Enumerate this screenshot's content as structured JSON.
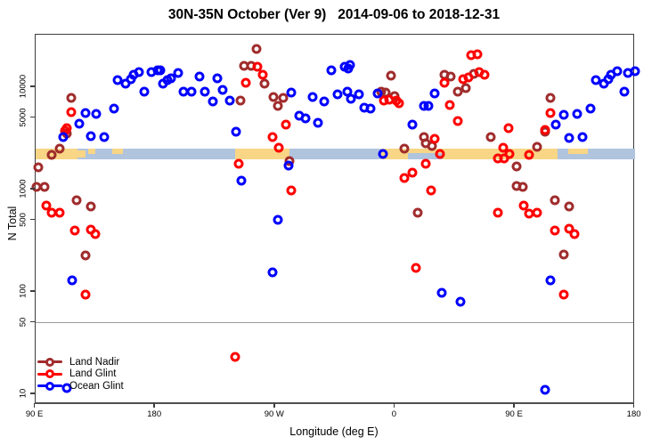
{
  "title": "30N-35N October (Ver 9)   2014-09-06 to 2018-12-31",
  "chart_data": {
    "type": "scatter",
    "title": "30N-35N October (Ver 9)   2014-09-06 to 2018-12-31",
    "xlabel": "Longitude (deg E)",
    "ylabel": "N Total",
    "x_axis": {
      "note": "longitude axis unwrapped eastward from 90E; values in deg E 90..540",
      "range": [
        90,
        540
      ],
      "tick_values": [
        90,
        180,
        270,
        360,
        450,
        540
      ],
      "tick_labels": [
        "90 E",
        "180",
        "90 W",
        "0",
        "90 E",
        "180"
      ]
    },
    "y_axis": {
      "scale": "log10",
      "range": [
        10,
        25000
      ],
      "tick_values": [
        10,
        50,
        100,
        500,
        1000,
        5000,
        10000
      ],
      "tick_labels": [
        "10",
        "50",
        "100",
        "500",
        "1000",
        "5000",
        "10000"
      ]
    },
    "reference_line_y": 50,
    "grid": false,
    "legend_position": "bottom-left",
    "map_band": {
      "description": "30N-35N latitude strip map drawn across plot near N=2300",
      "ocean_color": "#B0C4DE",
      "land_color": "#F8D685",
      "lon_range": [
        90,
        540
      ],
      "land_segments": [
        {
          "from": 90,
          "to": 122,
          "part": "full"
        },
        {
          "from": 122,
          "to": 128,
          "part": "mid"
        },
        {
          "from": 130,
          "to": 135,
          "part": "top"
        },
        {
          "from": 148,
          "to": 156,
          "part": "top"
        },
        {
          "from": 240,
          "to": 281,
          "part": "full"
        },
        {
          "from": 350,
          "to": 482,
          "part": "full"
        },
        {
          "from": 490,
          "to": 505,
          "part": "top"
        }
      ],
      "ocean_cutouts": [
        {
          "from": 370,
          "to": 396,
          "part": "bottom"
        }
      ]
    },
    "series": [
      {
        "name": "Land Nadir",
        "color": "#A02C2C",
        "points": [
          [
            117,
            7900
          ],
          [
            114,
            3550
          ],
          [
            108,
            2500
          ],
          [
            102,
            2180
          ],
          [
            92,
            1640
          ],
          [
            91,
            1070
          ],
          [
            97,
            1070
          ],
          [
            121,
            790
          ],
          [
            132,
            690
          ],
          [
            128,
            225
          ],
          [
            244,
            7400
          ],
          [
            256,
            23600
          ],
          [
            247,
            16200
          ],
          [
            252,
            16200
          ],
          [
            262,
            10850
          ],
          [
            269,
            8030
          ],
          [
            276,
            7870
          ],
          [
            272,
            6570
          ],
          [
            281,
            1890
          ],
          [
            350,
            9050
          ],
          [
            353,
            8870
          ],
          [
            360,
            8200
          ],
          [
            357,
            12950
          ],
          [
            367,
            2500
          ],
          [
            383,
            2830
          ],
          [
            388,
            2660
          ],
          [
            382,
            3270
          ],
          [
            377,
            590
          ],
          [
            397,
            13200
          ],
          [
            402,
            12700
          ],
          [
            419,
            13400
          ],
          [
            413,
            9800
          ],
          [
            407,
            9050
          ],
          [
            432,
            3270
          ],
          [
            467,
            2610
          ],
          [
            451,
            1670
          ],
          [
            451,
            1090
          ],
          [
            456,
            1070
          ],
          [
            480,
            790
          ],
          [
            491,
            690
          ],
          [
            487,
            230
          ],
          [
            477,
            7870
          ],
          [
            473,
            3700
          ]
        ]
      },
      {
        "name": "Land Glint",
        "color": "#FF0000",
        "points": [
          [
            117,
            5710
          ],
          [
            114,
            4000
          ],
          [
            112,
            3770
          ],
          [
            98,
            700
          ],
          [
            102,
            590
          ],
          [
            108,
            600
          ],
          [
            120,
            400
          ],
          [
            132,
            408
          ],
          [
            135,
            370
          ],
          [
            128,
            94
          ],
          [
            257,
            16000
          ],
          [
            261,
            13200
          ],
          [
            248,
            11050
          ],
          [
            268,
            3270
          ],
          [
            278,
            4330
          ],
          [
            273,
            2560
          ],
          [
            282,
            990
          ],
          [
            240,
            23
          ],
          [
            243,
            1780
          ],
          [
            352,
            7400
          ],
          [
            356,
            7560
          ],
          [
            361,
            7400
          ],
          [
            363,
            6970
          ],
          [
            373,
            1450
          ],
          [
            367,
            1290
          ],
          [
            383,
            1780
          ],
          [
            394,
            2220
          ],
          [
            387,
            990
          ],
          [
            376,
            170
          ],
          [
            397,
            11050
          ],
          [
            411,
            11950
          ],
          [
            415,
            12400
          ],
          [
            423,
            14050
          ],
          [
            427,
            13200
          ],
          [
            417,
            20500
          ],
          [
            422,
            21000
          ],
          [
            401,
            6700
          ],
          [
            407,
            4690
          ],
          [
            390,
            3140
          ],
          [
            445,
            4000
          ],
          [
            437,
            2000
          ],
          [
            441,
            2560
          ],
          [
            446,
            2220
          ],
          [
            442,
            2000
          ],
          [
            461,
            2180
          ],
          [
            437,
            600
          ],
          [
            457,
            700
          ],
          [
            461,
            578
          ],
          [
            467,
            590
          ],
          [
            480,
            400
          ],
          [
            491,
            415
          ],
          [
            495,
            370
          ],
          [
            477,
            5600
          ],
          [
            473,
            3840
          ],
          [
            487,
            94
          ]
        ]
      },
      {
        "name": "Ocean Glint",
        "color": "#0000FF",
        "points": [
          [
            152,
            11700
          ],
          [
            158,
            10850
          ],
          [
            162,
            11950
          ],
          [
            164,
            13200
          ],
          [
            168,
            14050
          ],
          [
            172,
            9050
          ],
          [
            177,
            14050
          ],
          [
            182,
            14600
          ],
          [
            184,
            14600
          ],
          [
            186,
            10850
          ],
          [
            189,
            11700
          ],
          [
            192,
            12200
          ],
          [
            197,
            13800
          ],
          [
            201,
            9050
          ],
          [
            123,
            4420
          ],
          [
            128,
            5600
          ],
          [
            136,
            5490
          ],
          [
            149,
            6180
          ],
          [
            118,
            130
          ],
          [
            111,
            3270
          ],
          [
            132,
            3340
          ],
          [
            142,
            3270
          ],
          [
            213,
            12700
          ],
          [
            227,
            12200
          ],
          [
            207,
            9050
          ],
          [
            217,
            9050
          ],
          [
            231,
            9400
          ],
          [
            223,
            7260
          ],
          [
            236,
            7400
          ],
          [
            241,
            3690
          ],
          [
            282,
            8870
          ],
          [
            298,
            8030
          ],
          [
            307,
            7260
          ],
          [
            317,
            8530
          ],
          [
            324,
            9050
          ],
          [
            312,
            14600
          ],
          [
            322,
            15850
          ],
          [
            326,
            16600
          ],
          [
            288,
            5270
          ],
          [
            293,
            4970
          ],
          [
            302,
            4510
          ],
          [
            268,
            155
          ],
          [
            280,
            1710
          ],
          [
            272,
            506
          ],
          [
            245,
            1210
          ],
          [
            351,
            2220
          ],
          [
            333,
            8530
          ],
          [
            327,
            7700
          ],
          [
            337,
            6300
          ],
          [
            342,
            6180
          ],
          [
            347,
            8700
          ],
          [
            325,
            15100
          ],
          [
            373,
            4330
          ],
          [
            382,
            6570
          ],
          [
            385,
            6570
          ],
          [
            390,
            8700
          ],
          [
            395,
            98
          ],
          [
            409,
            81
          ],
          [
            477,
            130
          ],
          [
            473,
            11
          ],
          [
            481,
            4330
          ],
          [
            487,
            5380
          ],
          [
            497,
            5490
          ],
          [
            507,
            6180
          ],
          [
            511,
            11700
          ],
          [
            517,
            10850
          ],
          [
            520,
            11950
          ],
          [
            522,
            13200
          ],
          [
            527,
            14300
          ],
          [
            532,
            9050
          ],
          [
            535,
            13800
          ],
          [
            540,
            14300
          ],
          [
            491,
            3200
          ],
          [
            501,
            3270
          ],
          [
            114,
            11.5
          ]
        ]
      }
    ]
  }
}
